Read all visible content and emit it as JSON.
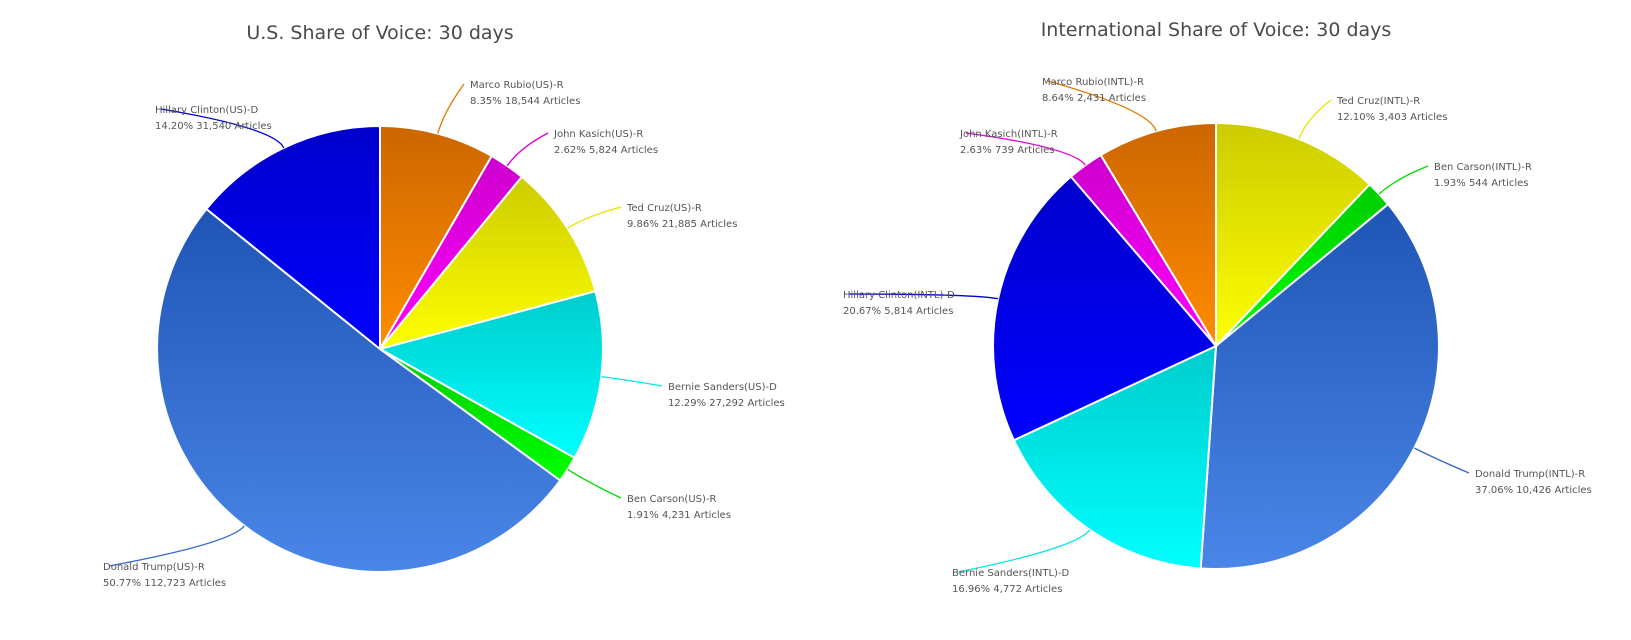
{
  "chart_data": [
    {
      "type": "pie",
      "title": "U.S. Share of Voice: 30 days",
      "slices": [
        {
          "name": "Marco Rubio(US)-R",
          "percent": 8.35,
          "articles": 18544,
          "percent_label": "8.35%",
          "articles_label": "18,544 Articles",
          "color_top": "#cc6600",
          "color_bottom": "#ff8c00",
          "line_color": "#e07a00"
        },
        {
          "name": "John Kasich(US)-R",
          "percent": 2.62,
          "articles": 5824,
          "percent_label": "2.62%",
          "articles_label": "5,824 Articles",
          "color_top": "#cc00cc",
          "color_bottom": "#ff00ff",
          "line_color": "#dd00dd"
        },
        {
          "name": "Ted Cruz(US)-R",
          "percent": 9.86,
          "articles": 21885,
          "percent_label": "9.86%",
          "articles_label": "21,885 Articles",
          "color_top": "#cccc00",
          "color_bottom": "#ffff00",
          "line_color": "#e6e600"
        },
        {
          "name": "Bernie Sanders(US)-D",
          "percent": 12.29,
          "articles": 27292,
          "percent_label": "12.29%",
          "articles_label": "27,292 Articles",
          "color_top": "#00cccc",
          "color_bottom": "#00ffff",
          "line_color": "#00e6e6"
        },
        {
          "name": "Ben Carson(US)-R",
          "percent": 1.91,
          "articles": 4231,
          "percent_label": "1.91%",
          "articles_label": "4,231 Articles",
          "color_top": "#00cc00",
          "color_bottom": "#00ff00",
          "line_color": "#00dd00"
        },
        {
          "name": "Donald Trump(US)-R",
          "percent": 50.77,
          "articles": 112723,
          "percent_label": "50.77%",
          "articles_label": "112,723 Articles",
          "color_top": "#1f55b5",
          "color_bottom": "#4a86e8",
          "line_color": "#3366cc"
        },
        {
          "name": "Hillary Clinton(US)-D",
          "percent": 14.2,
          "articles": 31540,
          "percent_label": "14.20%",
          "articles_label": "31,540 Articles",
          "color_top": "#0000cc",
          "color_bottom": "#0000ff",
          "line_color": "#0000dd"
        }
      ]
    },
    {
      "type": "pie",
      "title": "International Share of Voice: 30 days",
      "slices": [
        {
          "name": "Ted Cruz(INTL)-R",
          "percent": 12.1,
          "articles": 3403,
          "percent_label": "12.10%",
          "articles_label": "3,403 Articles",
          "color_top": "#cccc00",
          "color_bottom": "#ffff00",
          "line_color": "#e6e600"
        },
        {
          "name": "Ben Carson(INTL)-R",
          "percent": 1.93,
          "articles": 544,
          "percent_label": "1.93%",
          "articles_label": "544 Articles",
          "color_top": "#00cc00",
          "color_bottom": "#00ff00",
          "line_color": "#00dd00"
        },
        {
          "name": "Donald Trump(INTL)-R",
          "percent": 37.06,
          "articles": 10426,
          "percent_label": "37.06%",
          "articles_label": "10,426 Articles",
          "color_top": "#1f55b5",
          "color_bottom": "#4a86e8",
          "line_color": "#3366cc"
        },
        {
          "name": "Bernie Sanders(INTL)-D",
          "percent": 16.96,
          "articles": 4772,
          "percent_label": "16.96%",
          "articles_label": "4,772 Articles",
          "color_top": "#00cccc",
          "color_bottom": "#00ffff",
          "line_color": "#00e6e6"
        },
        {
          "name": "Hillary Clinton(INTL)-D",
          "percent": 20.67,
          "articles": 5814,
          "percent_label": "20.67%",
          "articles_label": "5,814 Articles",
          "color_top": "#0000cc",
          "color_bottom": "#0000ff",
          "line_color": "#0000dd"
        },
        {
          "name": "John Kasich(INTL)-R",
          "percent": 2.63,
          "articles": 739,
          "percent_label": "2.63%",
          "articles_label": "739 Articles",
          "color_top": "#cc00cc",
          "color_bottom": "#ff00ff",
          "line_color": "#dd00dd"
        },
        {
          "name": "Marco Rubio(INTL)-R",
          "percent": 8.64,
          "articles": 2431,
          "percent_label": "8.64%",
          "articles_label": "2,431 Articles",
          "color_top": "#cc6600",
          "color_bottom": "#ff8c00",
          "line_color": "#e07a00"
        }
      ]
    }
  ]
}
